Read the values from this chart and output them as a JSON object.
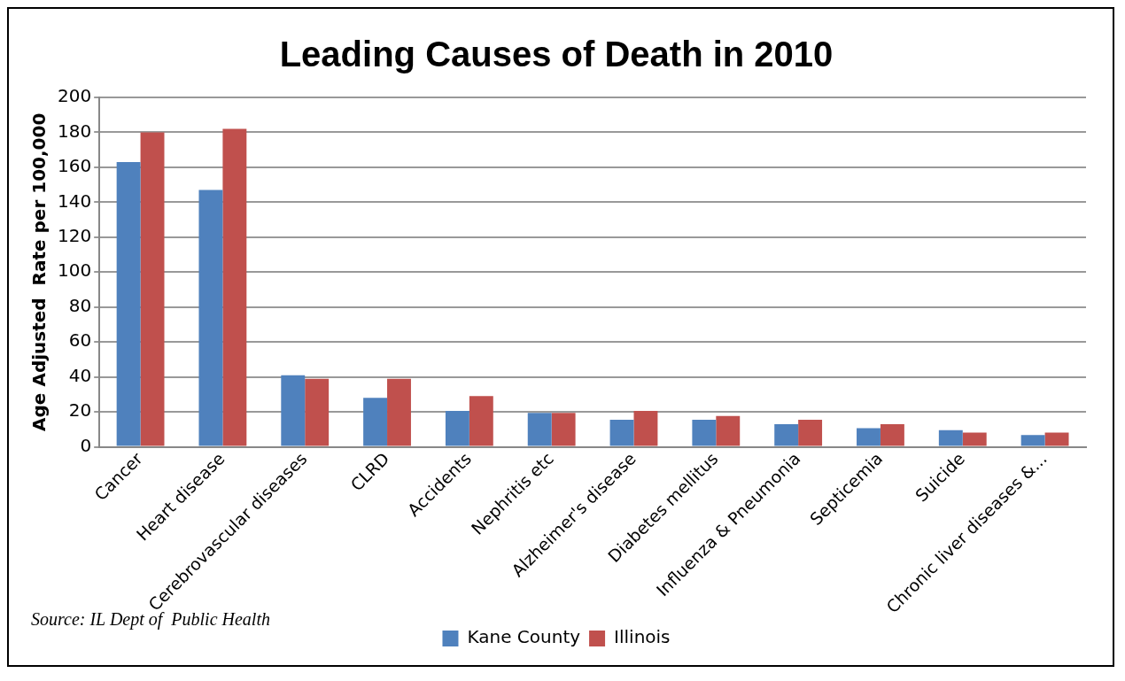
{
  "chart_data": {
    "type": "bar",
    "title": "Leading Causes of Death in 2010",
    "ylabel": "Age Adjusted  Rate per 100,000",
    "categories": [
      "Cancer",
      "Heart disease",
      "Cerebrovascular diseases",
      "CLRD",
      "Accidents",
      "Nephritis etc",
      "Alzheimer's disease",
      "Diabetes mellitus",
      "Influenza & Pneumonia",
      "Septicemia",
      "Suicide",
      "Chronic liver diseases &..."
    ],
    "series": [
      {
        "name": "Kane County",
        "color": "#4f81bd",
        "values": [
          163,
          147,
          41,
          28,
          20.6,
          19.4,
          15.5,
          15.5,
          13,
          10.7,
          9.5,
          6.8
        ]
      },
      {
        "name": "Illinois",
        "color": "#c0504d",
        "values": [
          180,
          182,
          39,
          39,
          29,
          19.4,
          20.6,
          17.7,
          15.5,
          13,
          8.2,
          8.2
        ]
      }
    ],
    "ylim": [
      0,
      200
    ],
    "yticks": [
      0,
      20,
      40,
      60,
      80,
      100,
      120,
      140,
      160,
      180,
      200
    ],
    "grid": "y",
    "legend": "bottom",
    "annotations": [
      "Source: IL Dept of  Public Health"
    ]
  }
}
